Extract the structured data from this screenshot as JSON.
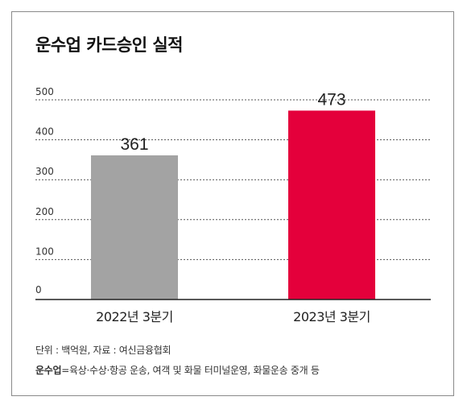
{
  "title": "운수업 카드승인 실적",
  "colors": {
    "bar_2022": "#a3a3a3",
    "bar_2023": "#e4003b",
    "grid": "#555555"
  },
  "chart_data": {
    "type": "bar",
    "title": "운수업 카드승인 실적",
    "categories": [
      "2022년 3분기",
      "2023년 3분기"
    ],
    "values": [
      361,
      473
    ],
    "value_labels": [
      "361",
      "473"
    ],
    "ylim": [
      0,
      500
    ],
    "yticks": [
      0,
      100,
      200,
      300,
      400,
      500
    ],
    "ytick_labels": [
      "0",
      "100",
      "200",
      "300",
      "400",
      "500"
    ],
    "grid": true,
    "xlabel": "",
    "ylabel": ""
  },
  "notes": {
    "unit_source": "단위 : 백억원, 자료 : 여신금융협회",
    "definition_term": "운수업",
    "definition_text": "=육상·수상·항공 운송, 여객 및 화물 터미널운영, 화물운송 중개 등"
  }
}
